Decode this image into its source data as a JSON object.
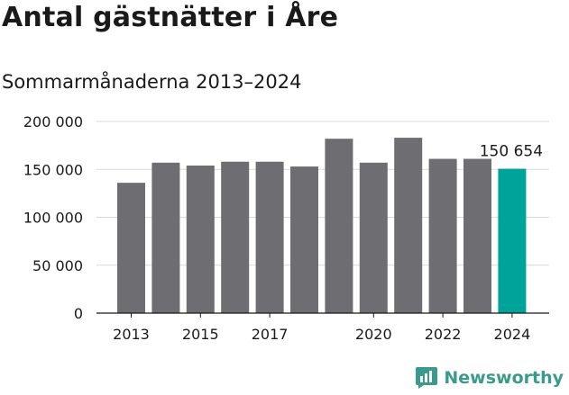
{
  "header": {
    "title": "Antal gästnätter i Åre",
    "subtitle": "Sommarmånaderna 2013–2024"
  },
  "brand": {
    "name": "Newsworthy",
    "color": "#3a9b8c",
    "icon": "newsworthy-chart-logo-icon"
  },
  "colors": {
    "bar": "#6d6d72",
    "highlight": "#00a39a",
    "grid": "#d9d9d9",
    "axis": "#1a1a1a",
    "text": "#1a1a1a"
  },
  "chart_data": {
    "type": "bar",
    "title": "Antal gästnätter i Åre",
    "subtitle": "Sommarmånaderna 2013–2024",
    "xlabel": "",
    "ylabel": "",
    "categories": [
      "2013",
      "2014",
      "2015",
      "2016",
      "2017",
      "2018",
      "2019",
      "2020",
      "2021",
      "2022",
      "2023",
      "2024"
    ],
    "values": [
      136000,
      157000,
      154000,
      158000,
      158000,
      153000,
      182000,
      157000,
      183000,
      161000,
      161000,
      150654
    ],
    "highlight_index": 11,
    "highlight_label": "150 654",
    "x_tick_labels": [
      "2013",
      "2015",
      "2017",
      "2020",
      "2022",
      "2024"
    ],
    "y_ticks": [
      0,
      50000,
      100000,
      150000,
      200000
    ],
    "y_tick_labels": [
      "0",
      "50 000",
      "100 000",
      "150 000",
      "200 000"
    ],
    "ylim": [
      0,
      200000
    ],
    "grid": true,
    "legend": "none"
  }
}
